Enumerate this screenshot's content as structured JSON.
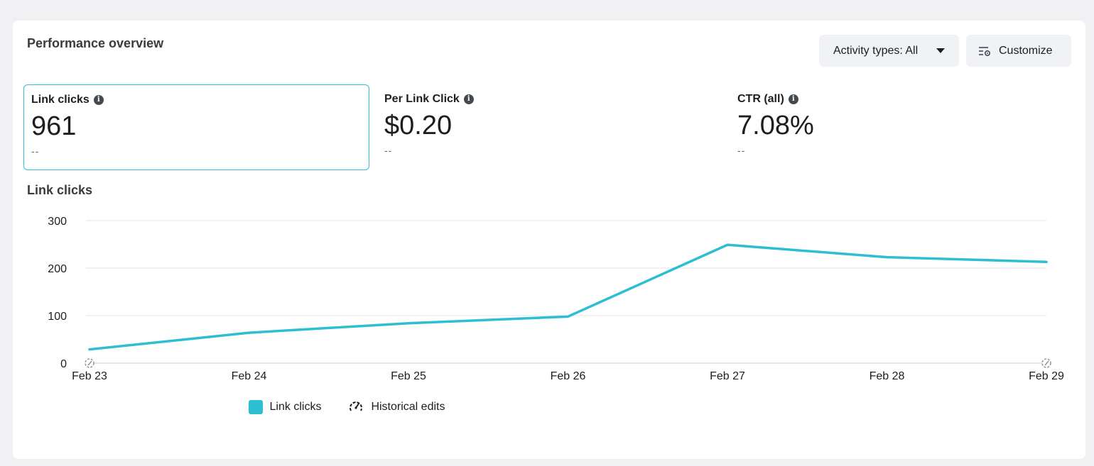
{
  "card": {
    "title": "Performance overview"
  },
  "toolbar": {
    "activity_label": "Activity types: All",
    "customize_label": "Customize"
  },
  "metrics": [
    {
      "label": "Link clicks",
      "value": "961",
      "change": "--",
      "selected": true
    },
    {
      "label": "Per Link Click",
      "value": "$0.20",
      "change": "--",
      "selected": false
    },
    {
      "label": "CTR (all)",
      "value": "7.08%",
      "change": "--",
      "selected": false
    }
  ],
  "legend": {
    "series_label": "Link clicks",
    "edits_label": "Historical edits"
  },
  "colors": {
    "accent": "#2bbfd1",
    "selected_border": "#2fbfd3"
  },
  "chart_data": {
    "type": "line",
    "title": "Link clicks",
    "categories": [
      "Feb 23",
      "Feb 24",
      "Feb 25",
      "Feb 26",
      "Feb 27",
      "Feb 28",
      "Feb 29"
    ],
    "series": [
      {
        "name": "Link clicks",
        "values": [
          29,
          64,
          84,
          98,
          249,
          223,
          213
        ]
      }
    ],
    "y_ticks": [
      0,
      100,
      200,
      300
    ],
    "ylim": [
      0,
      300
    ],
    "grid": true,
    "legend": "bottom-center"
  }
}
